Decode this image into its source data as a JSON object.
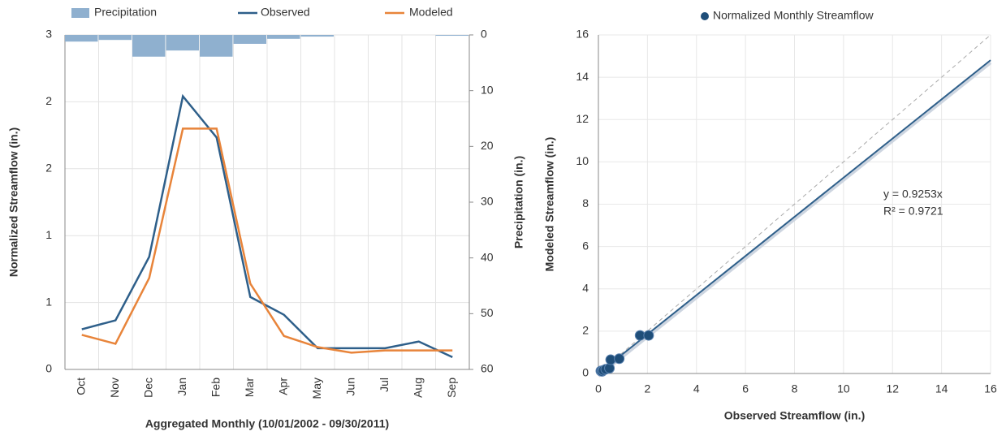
{
  "chart_data": [
    {
      "type": "combo",
      "x_label": "Aggregated Monthly (10/01/2002 - 09/30/2011)",
      "y_label": "Normalized Streamflow (in.)",
      "y2_label": "Precipitation (in.)",
      "categories": [
        "Oct",
        "Nov",
        "Dec",
        "Jan",
        "Feb",
        "Mar",
        "Apr",
        "May",
        "Jun",
        "Jul",
        "Aug",
        "Sep"
      ],
      "series": [
        {
          "name": "Precipitation",
          "kind": "bar",
          "axis": "y2",
          "color": "#8fb0cf",
          "values": [
            1.2,
            0.9,
            3.9,
            2.8,
            3.9,
            1.6,
            0.7,
            0.3,
            0,
            0,
            0,
            0.15
          ]
        },
        {
          "name": "Observed",
          "kind": "line",
          "color": "#2e5f8a",
          "values": [
            0.36,
            0.44,
            1.01,
            2.45,
            2.08,
            0.65,
            0.49,
            0.19,
            0.19,
            0.19,
            0.25,
            0.11
          ]
        },
        {
          "name": "Modeled",
          "kind": "line",
          "color": "#e8843a",
          "values": [
            0.31,
            0.23,
            0.82,
            2.16,
            2.16,
            0.77,
            0.3,
            0.2,
            0.15,
            0.17,
            0.17,
            0.17
          ]
        }
      ],
      "ylim": [
        0,
        3
      ],
      "yticks": [
        0,
        {
          "value": 0.6,
          "label": "1"
        },
        {
          "value": 1.2,
          "label": "1"
        },
        {
          "value": 1.8,
          "label": "2"
        },
        {
          "value": 2.4,
          "label": "2"
        },
        3
      ],
      "y2lim": [
        0,
        60
      ],
      "y2_inverted": true,
      "y2ticks": [
        0,
        10,
        20,
        30,
        40,
        50,
        60
      ],
      "grid": true
    },
    {
      "type": "scatter",
      "x_label": "Observed Streamflow (in.)",
      "y_label": "Modeled Streamflow (in.)",
      "series": [
        {
          "name": "Normalized Monthly Streamflow",
          "color": "#1f4e79",
          "x": [
            0.1,
            0.15,
            0.2,
            0.3,
            0.45,
            0.5,
            0.85,
            1.7,
            2.05
          ],
          "y": [
            0.12,
            0.1,
            0.15,
            0.2,
            0.25,
            0.65,
            0.7,
            1.8,
            1.8
          ]
        }
      ],
      "trendline": {
        "slope": 0.9253,
        "color": "#2e5f8a"
      },
      "annotations": [
        "y = 0.9253x",
        "R² = 0.9721"
      ],
      "xlim": [
        0,
        16
      ],
      "xticks": [
        0,
        2,
        4,
        6,
        8,
        10,
        12,
        14,
        16
      ],
      "ylim": [
        0,
        16
      ],
      "yticks": [
        0,
        2,
        4,
        6,
        8,
        10,
        12,
        14,
        16
      ],
      "grid": true
    }
  ]
}
